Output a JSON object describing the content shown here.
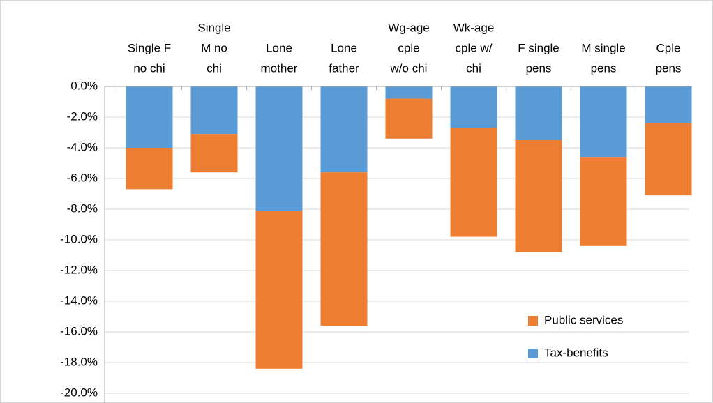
{
  "chart_data": {
    "type": "stacked-bar",
    "categories": [
      [
        "Single F",
        "no chi"
      ],
      [
        "Single",
        "M no",
        "chi"
      ],
      [
        "Lone",
        "mother"
      ],
      [
        "Lone",
        "father"
      ],
      [
        "Wg-age",
        "cple",
        "w/o chi"
      ],
      [
        "Wk-age",
        "cple w/",
        "chi"
      ],
      [
        "F single",
        "pens"
      ],
      [
        "M single",
        "pens"
      ],
      [
        "Cple",
        "pens"
      ]
    ],
    "series": [
      {
        "name": "Tax-benefits",
        "color": "#5b9bd5",
        "values": [
          -4.0,
          -3.1,
          -8.1,
          -5.6,
          -0.8,
          -2.7,
          -3.5,
          -4.6,
          -2.4
        ]
      },
      {
        "name": "Public services",
        "color": "#ed7d31",
        "values": [
          -2.7,
          -2.5,
          -10.3,
          -10.0,
          -2.6,
          -7.1,
          -7.3,
          -5.8,
          -4.7
        ]
      }
    ],
    "ylim": [
      -20,
      0
    ],
    "yticks": [
      {
        "value": 0,
        "label": "0.0%"
      },
      {
        "value": -2,
        "label": "-2.0%"
      },
      {
        "value": -4,
        "label": "-4.0%"
      },
      {
        "value": -6,
        "label": "-6.0%"
      },
      {
        "value": -8,
        "label": "-8.0%"
      },
      {
        "value": -10,
        "label": "-10.0%"
      },
      {
        "value": -12,
        "label": "-12.0%"
      },
      {
        "value": -14,
        "label": "-14.0%"
      },
      {
        "value": -16,
        "label": "-16.0%"
      },
      {
        "value": -18,
        "label": "-18.0%"
      },
      {
        "value": -20,
        "label": "-20.0%"
      }
    ],
    "grid": true,
    "legend": "lower right"
  }
}
